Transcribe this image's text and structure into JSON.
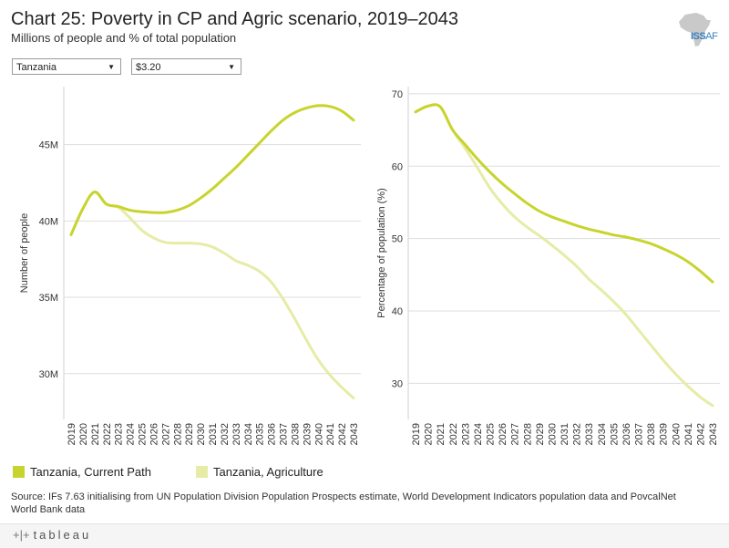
{
  "header": {
    "title": "Chart 25: Poverty in CP and Agric scenario, 2019–2043",
    "subtitle": "Millions of people and % of total population",
    "logo_text_a": "ISS",
    "logo_text_b": "AF"
  },
  "filters": {
    "country": "Tanzania",
    "threshold": "$3.20"
  },
  "colors": {
    "current_path": "#c8d42e",
    "agriculture": "#e6eca6",
    "grid": "#dddddd"
  },
  "legend": {
    "current_path": "Tanzania, Current Path",
    "agriculture": "Tanzania, Agriculture"
  },
  "source": "Source: IFs 7.63 initialising from UN Population Division Population Prospects estimate, World Development Indicators population data and PovcalNet World Bank data",
  "footer": {
    "brand": "tableau"
  },
  "chart_data": [
    {
      "type": "line",
      "title": "",
      "xlabel": "",
      "ylabel": "Number of people",
      "ylim": [
        27,
        48.8
      ],
      "yticks": [
        30,
        35,
        40,
        45
      ],
      "ytick_labels": [
        "30M",
        "35M",
        "40M",
        "45M"
      ],
      "categories": [
        "2019",
        "2020",
        "2021",
        "2022",
        "2023",
        "2024",
        "2025",
        "2026",
        "2027",
        "2028",
        "2029",
        "2030",
        "2031",
        "2032",
        "2033",
        "2034",
        "2035",
        "2036",
        "2037",
        "2038",
        "2039",
        "2040",
        "2041",
        "2042",
        "2043"
      ],
      "series": [
        {
          "name": "Tanzania, Current Path",
          "color_key": "current_path",
          "values": [
            39.1,
            40.8,
            41.9,
            41.1,
            40.95,
            40.7,
            40.6,
            40.55,
            40.55,
            40.7,
            41.0,
            41.5,
            42.1,
            42.8,
            43.5,
            44.3,
            45.1,
            45.9,
            46.6,
            47.1,
            47.4,
            47.55,
            47.5,
            47.2,
            46.6
          ]
        },
        {
          "name": "Tanzania, Agriculture",
          "color_key": "agriculture",
          "values": [
            39.1,
            40.8,
            41.9,
            41.1,
            40.9,
            40.2,
            39.4,
            38.9,
            38.6,
            38.55,
            38.55,
            38.5,
            38.3,
            37.9,
            37.4,
            37.1,
            36.7,
            36.0,
            34.9,
            33.6,
            32.2,
            30.9,
            29.9,
            29.1,
            28.4
          ]
        }
      ]
    },
    {
      "type": "line",
      "title": "",
      "xlabel": "",
      "ylabel": "Percentage of population (%)",
      "ylim": [
        25,
        71
      ],
      "yticks": [
        30,
        40,
        50,
        60,
        70
      ],
      "ytick_labels": [
        "30",
        "40",
        "50",
        "60",
        "70"
      ],
      "categories": [
        "2019",
        "2020",
        "2021",
        "2022",
        "2023",
        "2024",
        "2025",
        "2026",
        "2027",
        "2028",
        "2029",
        "2030",
        "2031",
        "2032",
        "2033",
        "2034",
        "2035",
        "2036",
        "2037",
        "2038",
        "2039",
        "2040",
        "2041",
        "2042",
        "2043"
      ],
      "series": [
        {
          "name": "Tanzania, Current Path",
          "color_key": "current_path",
          "values": [
            67.5,
            68.3,
            68.2,
            65.0,
            63.0,
            61.0,
            59.2,
            57.6,
            56.2,
            54.9,
            53.8,
            53.0,
            52.4,
            51.8,
            51.3,
            50.9,
            50.5,
            50.2,
            49.8,
            49.3,
            48.6,
            47.8,
            46.8,
            45.5,
            44.0
          ]
        },
        {
          "name": "Tanzania, Agriculture",
          "color_key": "agriculture",
          "values": [
            67.5,
            68.3,
            68.2,
            65.0,
            62.5,
            59.8,
            57.0,
            54.8,
            53.0,
            51.6,
            50.4,
            49.1,
            47.7,
            46.2,
            44.4,
            42.9,
            41.3,
            39.5,
            37.4,
            35.3,
            33.2,
            31.3,
            29.6,
            28.1,
            26.9
          ]
        }
      ]
    }
  ]
}
